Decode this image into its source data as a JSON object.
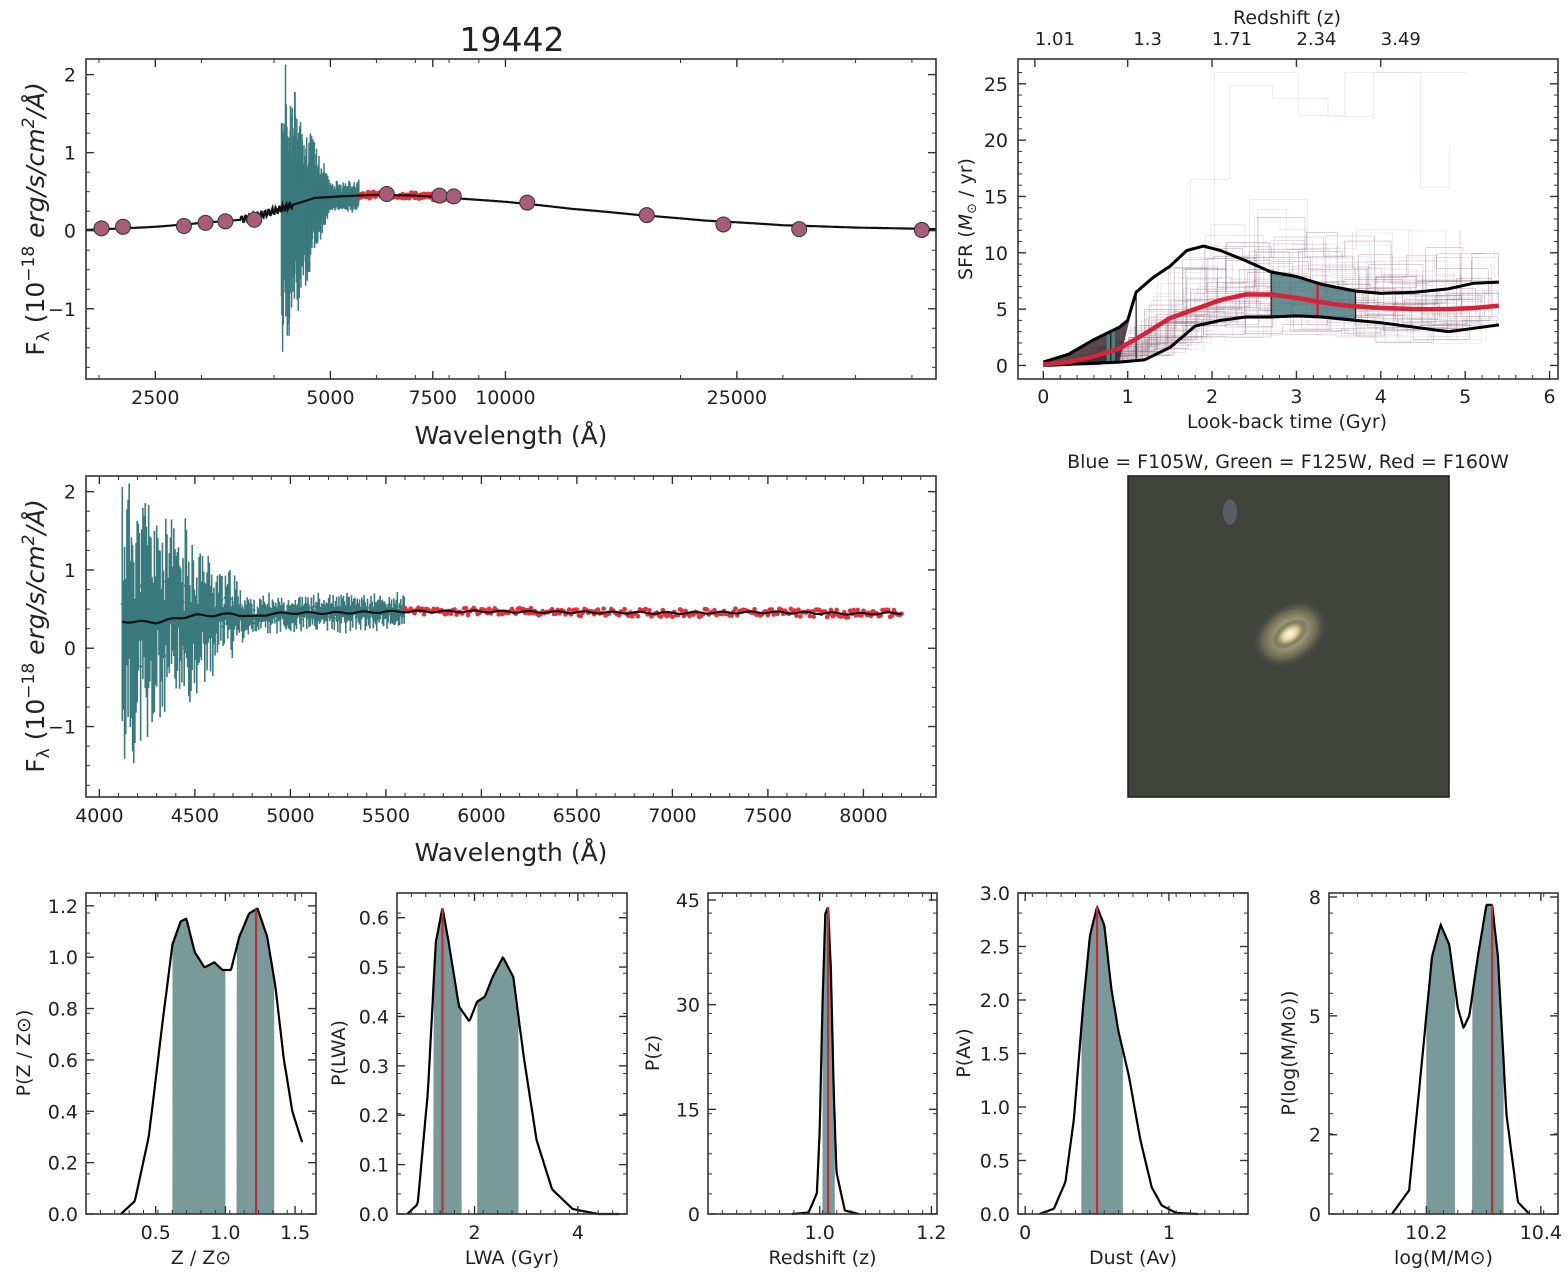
{
  "chart_data": [
    {
      "id": "sed",
      "type": "line",
      "title": "19442",
      "xlabel": "Wavelength (Å)",
      "ylabel": "F_λ (10^-18 erg/s/cm^2/Å)",
      "xscale": "log",
      "xlim": [
        1900,
        55000
      ],
      "ylim": [
        -1.9,
        2.2
      ],
      "xticks": [
        2500,
        5000,
        7500,
        10000,
        25000
      ],
      "yticks": [
        -1,
        0,
        1,
        2
      ],
      "photometry_points": [
        {
          "x": 2020,
          "y": 0.03
        },
        {
          "x": 2200,
          "y": 0.05
        },
        {
          "x": 2800,
          "y": 0.06
        },
        {
          "x": 3050,
          "y": 0.1
        },
        {
          "x": 3300,
          "y": 0.12
        },
        {
          "x": 3700,
          "y": 0.14
        },
        {
          "x": 6250,
          "y": 0.47
        },
        {
          "x": 7700,
          "y": 0.45
        },
        {
          "x": 8150,
          "y": 0.44
        },
        {
          "x": 10900,
          "y": 0.36
        },
        {
          "x": 17500,
          "y": 0.2
        },
        {
          "x": 23700,
          "y": 0.08
        },
        {
          "x": 32000,
          "y": 0.02
        },
        {
          "x": 52000,
          "y": 0.01
        }
      ],
      "model": {
        "x": [
          1900,
          2500,
          3000,
          3500,
          4000,
          4300,
          4700,
          5200,
          6000,
          7000,
          8000,
          10000,
          13000,
          17000,
          22000,
          30000,
          40000,
          55000
        ],
        "y": [
          0.01,
          0.05,
          0.1,
          0.14,
          0.25,
          0.33,
          0.42,
          0.44,
          0.46,
          0.45,
          0.42,
          0.37,
          0.28,
          0.2,
          0.13,
          0.07,
          0.04,
          0.02
        ]
      },
      "grism_blue": {
        "xrange": [
          4120,
          5600
        ],
        "color": "#3a7a7d"
      },
      "grism_red": {
        "xrange": [
          5600,
          8200
        ],
        "color": "#e8303f"
      }
    },
    {
      "id": "spectrum",
      "type": "line",
      "xlabel": "Wavelength (Å)",
      "ylabel": "F_λ (10^-18 erg/s/cm^2/Å)",
      "xlim": [
        3930,
        8380
      ],
      "ylim": [
        -1.9,
        2.2
      ],
      "xticks": [
        4000,
        4500,
        5000,
        5500,
        6000,
        6500,
        7000,
        7500,
        8000
      ],
      "yticks": [
        -1,
        0,
        1,
        2
      ],
      "model": {
        "x": [
          4120,
          4200,
          4300,
          4400,
          4500,
          4600,
          4700,
          4800,
          4900,
          5000,
          5200,
          5400,
          5600,
          6000,
          6500,
          7000,
          7500,
          8000,
          8200
        ],
        "y": [
          0.34,
          0.34,
          0.33,
          0.38,
          0.42,
          0.42,
          0.44,
          0.4,
          0.44,
          0.45,
          0.45,
          0.46,
          0.47,
          0.47,
          0.46,
          0.45,
          0.46,
          0.44,
          0.45
        ]
      }
    },
    {
      "id": "sfh",
      "type": "line",
      "xlabel": "Look-back time (Gyr)",
      "ylabel": "SFR (M⊙ / yr)",
      "top_xlabel": "Redshift (z)",
      "top_ticks": [
        {
          "label": "1.01",
          "t": -0.1
        },
        {
          "label": "1.3",
          "t": 1.0
        },
        {
          "label": "1.71",
          "t": 2.0
        },
        {
          "label": "2.34",
          "t": 3.0
        },
        {
          "label": "3.49",
          "t": 4.0
        }
      ],
      "xlim": [
        -0.3,
        6.1
      ],
      "ylim": [
        -1.2,
        27.2
      ],
      "xticks": [
        0,
        1,
        2,
        3,
        4,
        5,
        6
      ],
      "yticks": [
        0,
        5,
        10,
        15,
        20,
        25
      ],
      "series": [
        {
          "name": "median",
          "color": "#d4243b",
          "x": [
            0,
            0.3,
            0.6,
            0.9,
            1.2,
            1.5,
            1.8,
            2.1,
            2.4,
            2.7,
            3.0,
            3.3,
            3.6,
            4.0,
            4.4,
            4.8,
            5.1,
            5.4
          ],
          "y": [
            0.1,
            0.3,
            0.8,
            1.5,
            2.8,
            4.2,
            5.0,
            5.8,
            6.3,
            6.3,
            6.0,
            5.6,
            5.3,
            5.1,
            5.0,
            5.0,
            5.1,
            5.3
          ]
        },
        {
          "name": "upper",
          "color": "#000000",
          "x": [
            0,
            0.3,
            0.6,
            0.9,
            1.0,
            1.1,
            1.3,
            1.5,
            1.7,
            1.9,
            2.1,
            2.4,
            2.7,
            3.0,
            3.3,
            3.7,
            4.0,
            4.4,
            4.8,
            5.1,
            5.4
          ],
          "y": [
            0.3,
            1.0,
            2.3,
            3.4,
            4.0,
            6.5,
            7.8,
            8.8,
            10.2,
            10.6,
            10.2,
            9.3,
            8.3,
            7.9,
            7.2,
            6.6,
            6.4,
            6.5,
            6.8,
            7.3,
            7.4
          ]
        },
        {
          "name": "lower",
          "color": "#000000",
          "x": [
            0,
            0.3,
            0.6,
            0.9,
            1.2,
            1.5,
            1.8,
            2.1,
            2.4,
            2.7,
            3.0,
            3.3,
            3.7,
            4.0,
            4.4,
            4.8,
            5.1,
            5.4
          ],
          "y": [
            0.0,
            0.1,
            0.2,
            0.3,
            0.5,
            1.6,
            3.5,
            4.0,
            4.3,
            4.3,
            4.4,
            4.3,
            4.0,
            3.8,
            3.4,
            3.0,
            3.3,
            3.6
          ]
        }
      ],
      "percentile_markers": [
        0.8,
        1.1,
        2.7,
        3.25,
        3.7
      ]
    },
    {
      "id": "zpost",
      "type": "area",
      "xlabel": "Z / Z⊙",
      "ylabel": "P(Z / Z⊙)",
      "xlim": [
        0.0,
        1.65
      ],
      "ylim": [
        0,
        1.25
      ],
      "xticks": [
        0.5,
        1.0,
        1.5
      ],
      "xticklabels": [
        "0.5",
        "1.0",
        "1.5"
      ],
      "yticks": [
        0,
        0.2,
        0.4,
        0.6,
        0.8,
        1.0,
        1.2
      ],
      "yticklabels": [
        "0.0",
        "0.2",
        "0.4",
        "0.6",
        "0.8",
        "1.0",
        "1.2"
      ],
      "x": [
        0.25,
        0.35,
        0.45,
        0.55,
        0.62,
        0.68,
        0.72,
        0.78,
        0.85,
        0.92,
        0.98,
        1.04,
        1.1,
        1.17,
        1.23,
        1.3,
        1.36,
        1.42,
        1.48,
        1.55
      ],
      "y": [
        0.0,
        0.05,
        0.3,
        0.75,
        1.05,
        1.14,
        1.15,
        1.02,
        0.96,
        0.98,
        0.95,
        0.95,
        1.08,
        1.17,
        1.19,
        1.08,
        0.88,
        0.6,
        0.4,
        0.28
      ],
      "shade": [
        [
          0.62,
          1.0
        ],
        [
          1.08,
          1.35
        ]
      ],
      "best": 1.22
    },
    {
      "id": "lwapost",
      "type": "area",
      "xlabel": "LWA (Gyr)",
      "ylabel": "P(LWA)",
      "xlim": [
        0.5,
        4.95
      ],
      "ylim": [
        0,
        0.65
      ],
      "xticks": [
        2,
        4
      ],
      "xticklabels": [
        "2",
        "4"
      ],
      "yticks": [
        0,
        0.1,
        0.2,
        0.3,
        0.4,
        0.5,
        0.6
      ],
      "yticklabels": [
        "0.0",
        "0.1",
        "0.2",
        "0.3",
        "0.4",
        "0.5",
        "0.6"
      ],
      "x": [
        0.7,
        0.9,
        1.1,
        1.25,
        1.38,
        1.5,
        1.7,
        1.9,
        2.05,
        2.2,
        2.35,
        2.55,
        2.75,
        2.95,
        3.2,
        3.5,
        3.9,
        4.4,
        4.8
      ],
      "y": [
        0.0,
        0.02,
        0.25,
        0.55,
        0.62,
        0.55,
        0.42,
        0.39,
        0.43,
        0.44,
        0.48,
        0.52,
        0.48,
        0.32,
        0.15,
        0.05,
        0.01,
        0.0,
        0.0
      ],
      "shade": [
        [
          1.2,
          1.75
        ],
        [
          2.05,
          2.85
        ]
      ],
      "best": 1.38
    },
    {
      "id": "redshiftpost",
      "type": "area",
      "xlabel": "Redshift (z)",
      "ylabel": "P(z)",
      "xlim": [
        0.8,
        1.21
      ],
      "ylim": [
        0,
        46
      ],
      "xticks": [
        1.0,
        1.2
      ],
      "xticklabels": [
        "1.0",
        "1.2"
      ],
      "yticks": [
        0,
        15,
        30,
        45
      ],
      "yticklabels": [
        "0",
        "15",
        "30",
        "45"
      ],
      "x": [
        0.95,
        0.98,
        0.995,
        1.0,
        1.005,
        1.01,
        1.015,
        1.02,
        1.025,
        1.03,
        1.045,
        1.07
      ],
      "y": [
        0.0,
        0.2,
        3.0,
        12.0,
        30.0,
        43.0,
        44.0,
        35.0,
        18.0,
        6.0,
        0.5,
        0.0
      ],
      "shade": [
        [
          1.005,
          1.027
        ]
      ],
      "best": 1.015
    },
    {
      "id": "dustpost",
      "type": "area",
      "xlabel": "Dust (Av)",
      "ylabel": "P(Av)",
      "xlim": [
        -0.05,
        1.55
      ],
      "ylim": [
        0,
        3.0
      ],
      "xticks": [
        0,
        1
      ],
      "xticklabels": [
        "0",
        "1"
      ],
      "yticks": [
        0,
        0.5,
        1.0,
        1.5,
        2.0,
        2.5,
        3.0
      ],
      "yticklabels": [
        "0.0",
        "0.5",
        "1.0",
        "1.5",
        "2.0",
        "2.5",
        "3.0"
      ],
      "x": [
        0.1,
        0.2,
        0.28,
        0.34,
        0.4,
        0.45,
        0.5,
        0.55,
        0.6,
        0.65,
        0.72,
        0.8,
        0.88,
        0.95,
        1.05,
        1.2
      ],
      "y": [
        0.0,
        0.05,
        0.3,
        0.9,
        1.9,
        2.6,
        2.87,
        2.7,
        2.1,
        1.7,
        1.3,
        0.7,
        0.25,
        0.08,
        0.01,
        0.0
      ],
      "shade": [
        [
          0.39,
          0.68
        ]
      ],
      "best": 0.5
    },
    {
      "id": "masspost",
      "type": "area",
      "xlabel": "log(M/M⊙)",
      "ylabel": "P(log(M/M⊙))",
      "xlim": [
        10.03,
        10.43
      ],
      "ylim": [
        0,
        8.1
      ],
      "xticks": [
        10.2,
        10.4
      ],
      "xticklabels": [
        "10.2",
        "10.4"
      ],
      "yticks": [
        0,
        2,
        5,
        8
      ],
      "yticklabels": [
        "0",
        "2",
        "5",
        "8"
      ],
      "x": [
        10.14,
        10.17,
        10.19,
        10.21,
        10.225,
        10.24,
        10.255,
        10.265,
        10.275,
        10.29,
        10.305,
        10.315,
        10.325,
        10.34,
        10.36,
        10.38
      ],
      "y": [
        0.0,
        0.6,
        3.5,
        6.5,
        7.3,
        6.8,
        5.2,
        4.7,
        5.0,
        6.5,
        7.8,
        7.8,
        6.5,
        2.5,
        0.3,
        0.0
      ],
      "shade": [
        [
          10.2,
          10.25
        ],
        [
          10.28,
          10.335
        ]
      ],
      "best": 10.315
    }
  ],
  "image_panel": {
    "title": "Blue = F105W, Green = F125W, Red = F160W"
  }
}
